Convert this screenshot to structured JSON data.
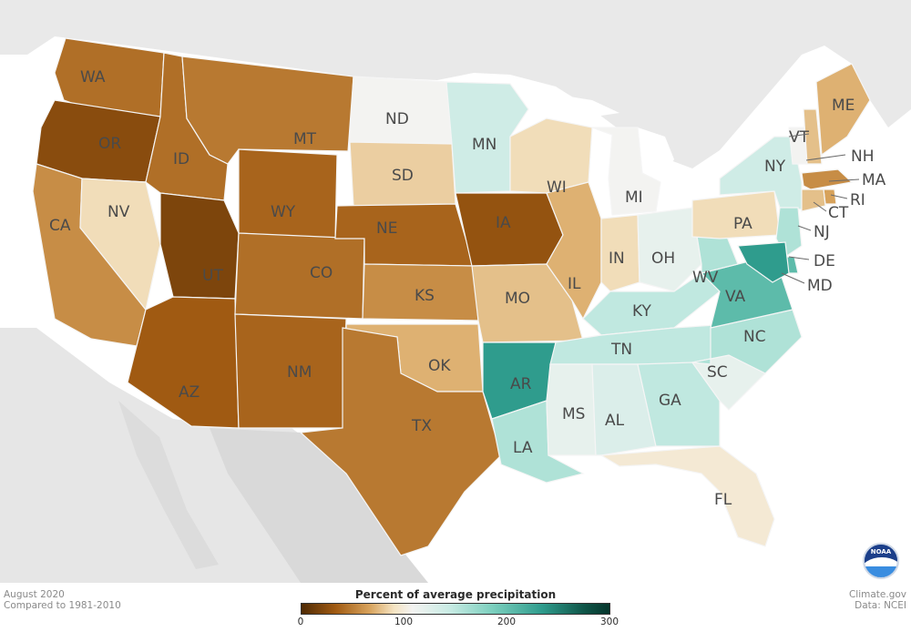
{
  "colors": {
    "ocean": "#ffffff",
    "land": "#e9e9e9",
    "land_shade": "#dcdcdc",
    "lake": "#ffffff",
    "scale": [
      "#4e2a05",
      "#a05a12",
      "#d7a25b",
      "#f4e3c2",
      "#f3f3f1",
      "#c9ebe4",
      "#7ccfbe",
      "#2f9c8d",
      "#0f5447",
      "#06352c"
    ]
  },
  "footer": {
    "left_line1": "August 2020",
    "left_line2": "Compared to 1981-2010",
    "right_line1": "Climate.gov",
    "right_line2": "Data: NCEI"
  },
  "legend": {
    "title": "Percent of average precipitation",
    "tick_0": "0",
    "tick_100": "100",
    "tick_200": "200",
    "tick_300": "300"
  },
  "logo": {
    "text": "NOAA"
  },
  "states": [
    {
      "abbr": "WA",
      "value": 45
    },
    {
      "abbr": "OR",
      "value": 25
    },
    {
      "abbr": "CA",
      "value": 60
    },
    {
      "abbr": "NV",
      "value": 90
    },
    {
      "abbr": "ID",
      "value": 45
    },
    {
      "abbr": "MT",
      "value": 50
    },
    {
      "abbr": "WY",
      "value": 40
    },
    {
      "abbr": "UT",
      "value": 20
    },
    {
      "abbr": "AZ",
      "value": 35
    },
    {
      "abbr": "CO",
      "value": 45
    },
    {
      "abbr": "NM",
      "value": 40
    },
    {
      "abbr": "ND",
      "value": 100
    },
    {
      "abbr": "SD",
      "value": 85
    },
    {
      "abbr": "NE",
      "value": 40
    },
    {
      "abbr": "KS",
      "value": 60
    },
    {
      "abbr": "OK",
      "value": 75
    },
    {
      "abbr": "TX",
      "value": 50
    },
    {
      "abbr": "MN",
      "value": 130
    },
    {
      "abbr": "IA",
      "value": 30
    },
    {
      "abbr": "MO",
      "value": 80
    },
    {
      "abbr": "AR",
      "value": 230
    },
    {
      "abbr": "LA",
      "value": 150
    },
    {
      "abbr": "WI",
      "value": 90
    },
    {
      "abbr": "IL",
      "value": 75
    },
    {
      "abbr": "MI",
      "value": 100
    },
    {
      "abbr": "IN",
      "value": 90
    },
    {
      "abbr": "OH",
      "value": 110
    },
    {
      "abbr": "KY",
      "value": 140
    },
    {
      "abbr": "TN",
      "value": 140
    },
    {
      "abbr": "MS",
      "value": 110
    },
    {
      "abbr": "AL",
      "value": 120
    },
    {
      "abbr": "GA",
      "value": 140
    },
    {
      "abbr": "FL",
      "value": 95
    },
    {
      "abbr": "SC",
      "value": 110
    },
    {
      "abbr": "NC",
      "value": 150
    },
    {
      "abbr": "VA",
      "value": 200
    },
    {
      "abbr": "WV",
      "value": 150
    },
    {
      "abbr": "PA",
      "value": 90
    },
    {
      "abbr": "NY",
      "value": 130
    },
    {
      "abbr": "VT",
      "value": 100
    },
    {
      "abbr": "NH",
      "value": 80
    },
    {
      "abbr": "ME",
      "value": 75
    },
    {
      "abbr": "MA",
      "value": 60
    },
    {
      "abbr": "RI",
      "value": 70
    },
    {
      "abbr": "CT",
      "value": 80
    },
    {
      "abbr": "NJ",
      "value": 150
    },
    {
      "abbr": "DE",
      "value": 200
    },
    {
      "abbr": "MD",
      "value": 230
    }
  ]
}
